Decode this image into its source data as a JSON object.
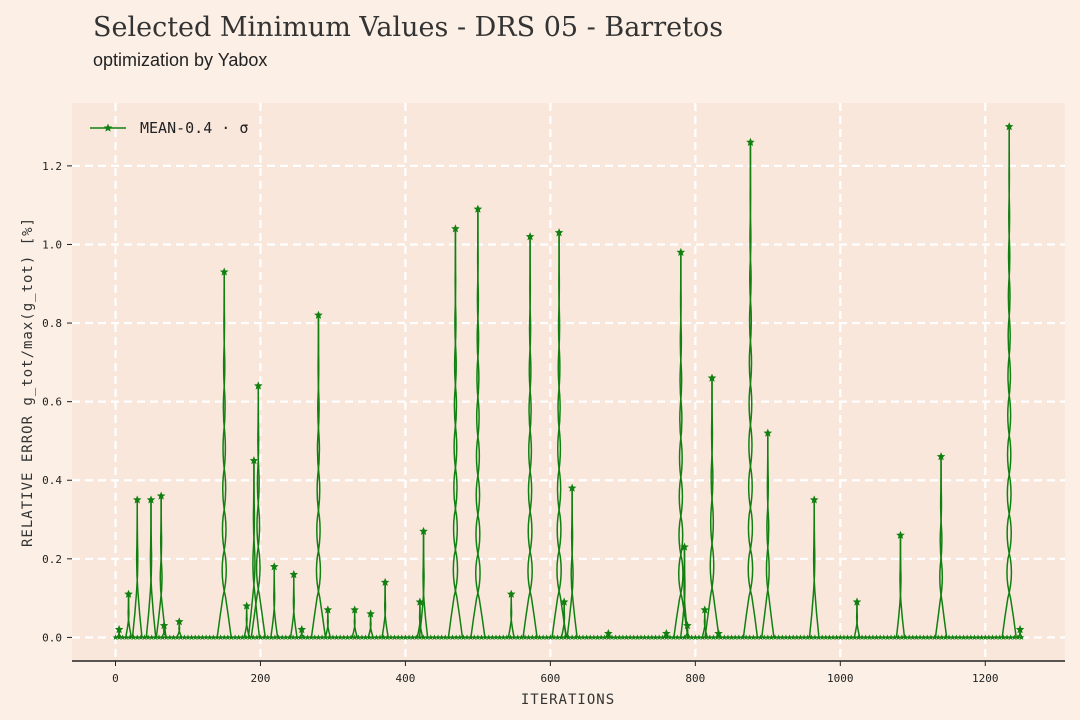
{
  "header": {
    "title": "Selected Minimum Values - DRS 05 - Barretos",
    "subtitle": "optimization by Yabox"
  },
  "colors": {
    "background": "#fcf0e6",
    "plot_bg": "#f9e7dc",
    "series": "#118011",
    "grid": "#ffffff"
  },
  "chart_data": {
    "type": "line",
    "xlabel": "ITERATIONS",
    "ylabel": "RELATIVE ERROR g_tot/max(g_tot) [%]",
    "xlim": [
      -60,
      1310
    ],
    "ylim": [
      -0.06,
      1.36
    ],
    "xticks": [
      0,
      200,
      400,
      600,
      800,
      1000,
      1200
    ],
    "yticks": [
      0.0,
      0.2,
      0.4,
      0.6,
      0.8,
      1.0,
      1.2
    ],
    "xtick_labels": [
      "0",
      "200",
      "400",
      "600",
      "800",
      "1000",
      "1200"
    ],
    "ytick_labels": [
      "0.0",
      "0.2",
      "0.4",
      "0.6",
      "0.8",
      "1.0",
      "1.2"
    ],
    "grid": true,
    "legend_position": "top-left",
    "baseline": 0.0,
    "baseline_x_step": 5,
    "baseline_x_range": [
      0,
      1250
    ],
    "series": [
      {
        "name": "MEAN-0.4 · σ",
        "marker": "star",
        "spikes": [
          [
            5,
            0.02
          ],
          [
            18,
            0.11
          ],
          [
            30,
            0.35
          ],
          [
            49,
            0.35
          ],
          [
            63,
            0.36
          ],
          [
            67,
            0.03
          ],
          [
            88,
            0.04
          ],
          [
            150,
            0.93
          ],
          [
            181,
            0.08
          ],
          [
            191,
            0.45
          ],
          [
            197,
            0.64
          ],
          [
            219,
            0.18
          ],
          [
            246,
            0.16
          ],
          [
            257,
            0.02
          ],
          [
            280,
            0.82
          ],
          [
            293,
            0.07
          ],
          [
            330,
            0.07
          ],
          [
            352,
            0.06
          ],
          [
            372,
            0.14
          ],
          [
            420,
            0.09
          ],
          [
            425,
            0.27
          ],
          [
            469,
            1.04
          ],
          [
            500,
            1.09
          ],
          [
            546,
            0.11
          ],
          [
            572,
            1.02
          ],
          [
            612,
            1.03
          ],
          [
            619,
            0.09
          ],
          [
            630,
            0.38
          ],
          [
            680,
            0.01
          ],
          [
            760,
            0.01
          ],
          [
            780,
            0.98
          ],
          [
            785,
            0.23
          ],
          [
            789,
            0.03
          ],
          [
            813,
            0.07
          ],
          [
            823,
            0.66
          ],
          [
            832,
            0.01
          ],
          [
            876,
            1.26
          ],
          [
            900,
            0.52
          ],
          [
            964,
            0.35
          ],
          [
            1023,
            0.09
          ],
          [
            1083,
            0.26
          ],
          [
            1139,
            0.46
          ],
          [
            1233,
            1.3
          ],
          [
            1248,
            0.02
          ]
        ]
      }
    ]
  }
}
